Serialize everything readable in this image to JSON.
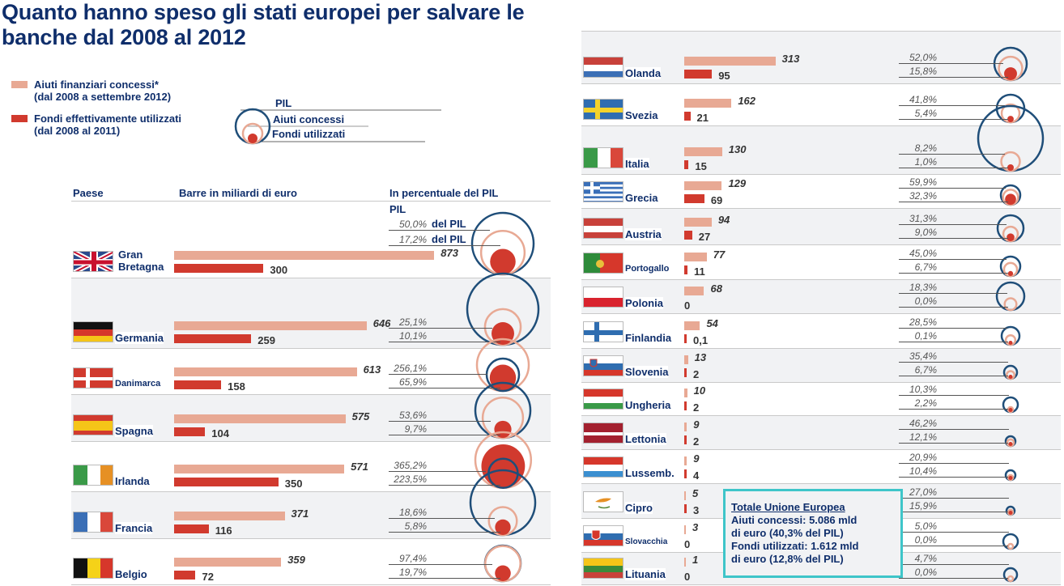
{
  "title": "Quanto hanno speso gli stati europei per salvare le banche dal 2008 al 2012",
  "colors": {
    "granted": "#e8a994",
    "used": "#d13a2e",
    "pil": "#1f4e79",
    "title": "#0f2e6b",
    "totale_border": "#3ec5c9"
  },
  "legend": {
    "granted_line1": "Aiuti finanziari concessi*",
    "granted_line2": "(dal 2008 a settembre 2012)",
    "used_line1": "Fondi effettivamente utilizzati",
    "used_line2": "(dal 2008 al 2011)",
    "circle_pil": "PIL",
    "circle_aiuti": "Aiuti concessi",
    "circle_fondi": "Fondi utilizzati"
  },
  "headers": {
    "paese": "Paese",
    "barre": "Barre in miliardi di euro",
    "percentuale": "In percentuale del PIL",
    "pil": "PIL",
    "del_pil": "del PIL"
  },
  "totale": {
    "heading": "Totale Unione Europea",
    "line1": "Aiuti concessi: 5.086 mld",
    "line2": "di euro (40,3% del PIL)",
    "line3": "Fondi utilizzati: 1.612 mld",
    "line4": "di euro (12,8% del PIL)"
  },
  "chart_data": {
    "type": "bar",
    "title": "Quanto hanno speso gli stati europei per salvare le banche dal 2008 al 2012",
    "xlabel": "Barre in miliardi di euro",
    "ylabel": "Paese",
    "series": [
      {
        "name": "Aiuti finanziari concessi* (dal 2008 a settembre 2012)",
        "unit": "mld euro"
      },
      {
        "name": "Fondi effettivamente utilizzati (dal 2008 al 2011)",
        "unit": "mld euro"
      }
    ],
    "countries": [
      {
        "name": "Gran Bretagna",
        "granted": 873,
        "granted_label": "873",
        "used": 300,
        "used_label": "300",
        "granted_pct": "50,0%",
        "used_pct": "17,2%",
        "granted_pct_val": 50.0,
        "used_pct_val": 17.2,
        "flag": "uk"
      },
      {
        "name": "Germania",
        "granted": 646,
        "granted_label": "646",
        "used": 259,
        "used_label": "259",
        "granted_pct": "25,1%",
        "used_pct": "10,1%",
        "granted_pct_val": 25.1,
        "used_pct_val": 10.1,
        "flag": "de"
      },
      {
        "name": "Danimarca",
        "granted": 613,
        "granted_label": "613",
        "used": 158,
        "used_label": "158",
        "granted_pct": "256,1%",
        "used_pct": "65,9%",
        "granted_pct_val": 256.1,
        "used_pct_val": 65.9,
        "flag": "dk"
      },
      {
        "name": "Spagna",
        "granted": 575,
        "granted_label": "575",
        "used": 104,
        "used_label": "104",
        "granted_pct": "53,6%",
        "used_pct": "9,7%",
        "granted_pct_val": 53.6,
        "used_pct_val": 9.7,
        "flag": "es"
      },
      {
        "name": "Irlanda",
        "granted": 571,
        "granted_label": "571",
        "used": 350,
        "used_label": "350",
        "granted_pct": "365,2%",
        "used_pct": "223,5%",
        "granted_pct_val": 365.2,
        "used_pct_val": 223.5,
        "flag": "ie"
      },
      {
        "name": "Francia",
        "granted": 371,
        "granted_label": "371",
        "used": 116,
        "used_label": "116",
        "granted_pct": "18,6%",
        "used_pct": "5,8%",
        "granted_pct_val": 18.6,
        "used_pct_val": 5.8,
        "flag": "fr"
      },
      {
        "name": "Belgio",
        "granted": 359,
        "granted_label": "359",
        "used": 72,
        "used_label": "72",
        "granted_pct": "97,4%",
        "used_pct": "19,7%",
        "granted_pct_val": 97.4,
        "used_pct_val": 19.7,
        "flag": "be"
      },
      {
        "name": "Olanda",
        "granted": 313,
        "granted_label": "313",
        "used": 95,
        "used_label": "95",
        "granted_pct": "52,0%",
        "used_pct": "15,8%",
        "granted_pct_val": 52.0,
        "used_pct_val": 15.8,
        "flag": "nl"
      },
      {
        "name": "Svezia",
        "granted": 162,
        "granted_label": "162",
        "used": 21,
        "used_label": "21",
        "granted_pct": "41,8%",
        "used_pct": "5,4%",
        "granted_pct_val": 41.8,
        "used_pct_val": 5.4,
        "flag": "se"
      },
      {
        "name": "Italia",
        "granted": 130,
        "granted_label": "130",
        "used": 15,
        "used_label": "15",
        "granted_pct": "8,2%",
        "used_pct": "1,0%",
        "granted_pct_val": 8.2,
        "used_pct_val": 1.0,
        "flag": "it"
      },
      {
        "name": "Grecia",
        "granted": 129,
        "granted_label": "129",
        "used": 69,
        "used_label": "69",
        "granted_pct": "59,9%",
        "used_pct": "32,3%",
        "granted_pct_val": 59.9,
        "used_pct_val": 32.3,
        "flag": "gr"
      },
      {
        "name": "Austria",
        "granted": 94,
        "granted_label": "94",
        "used": 27,
        "used_label": "27",
        "granted_pct": "31,3%",
        "used_pct": "9,0%",
        "granted_pct_val": 31.3,
        "used_pct_val": 9.0,
        "flag": "at"
      },
      {
        "name": "Portogallo",
        "granted": 77,
        "granted_label": "77",
        "used": 11,
        "used_label": "11",
        "granted_pct": "45,0%",
        "used_pct": "6,7%",
        "granted_pct_val": 45.0,
        "used_pct_val": 6.7,
        "flag": "pt"
      },
      {
        "name": "Polonia",
        "granted": 68,
        "granted_label": "68",
        "used": 0,
        "used_label": "0",
        "granted_pct": "18,3%",
        "used_pct": "0,0%",
        "granted_pct_val": 18.3,
        "used_pct_val": 0.0,
        "flag": "pl"
      },
      {
        "name": "Finlandia",
        "granted": 54,
        "granted_label": "54",
        "used": 0.1,
        "used_label": "0,1",
        "granted_pct": "28,5%",
        "used_pct": "0,1%",
        "granted_pct_val": 28.5,
        "used_pct_val": 0.1,
        "flag": "fi"
      },
      {
        "name": "Slovenia",
        "granted": 13,
        "granted_label": "13",
        "used": 2,
        "used_label": "2",
        "granted_pct": "35,4%",
        "used_pct": "6,7%",
        "granted_pct_val": 35.4,
        "used_pct_val": 6.7,
        "flag": "si"
      },
      {
        "name": "Ungheria",
        "granted": 10,
        "granted_label": "10",
        "used": 2,
        "used_label": "2",
        "granted_pct": "10,3%",
        "used_pct": "2,2%",
        "granted_pct_val": 10.3,
        "used_pct_val": 2.2,
        "flag": "hu"
      },
      {
        "name": "Lettonia",
        "granted": 9,
        "granted_label": "9",
        "used": 2,
        "used_label": "2",
        "granted_pct": "46,2%",
        "used_pct": "12,1%",
        "granted_pct_val": 46.2,
        "used_pct_val": 12.1,
        "flag": "lv"
      },
      {
        "name": "Lussemb.",
        "granted": 9,
        "granted_label": "9",
        "used": 4,
        "used_label": "4",
        "granted_pct": "20,9%",
        "used_pct": "10,4%",
        "granted_pct_val": 20.9,
        "used_pct_val": 10.4,
        "flag": "lu"
      },
      {
        "name": "Cipro",
        "granted": 5,
        "granted_label": "5",
        "used": 3,
        "used_label": "3",
        "granted_pct": "27,0%",
        "used_pct": "15,9%",
        "granted_pct_val": 27.0,
        "used_pct_val": 15.9,
        "flag": "cy"
      },
      {
        "name": "Slovacchia",
        "granted": 3,
        "granted_label": "3",
        "used": 0,
        "used_label": "0",
        "granted_pct": "5,0%",
        "used_pct": "0,0%",
        "granted_pct_val": 5.0,
        "used_pct_val": 0.0,
        "flag": "sk"
      },
      {
        "name": "Lituania",
        "granted": 1,
        "granted_label": "1",
        "used": 0,
        "used_label": "0",
        "granted_pct": "4,7%",
        "used_pct": "0,0%",
        "granted_pct_val": 4.7,
        "used_pct_val": 0.0,
        "flag": "lt"
      }
    ],
    "totale_ue": {
      "granted": 5086,
      "used": 1612,
      "granted_pct": 40.3,
      "used_pct": 12.8
    }
  }
}
